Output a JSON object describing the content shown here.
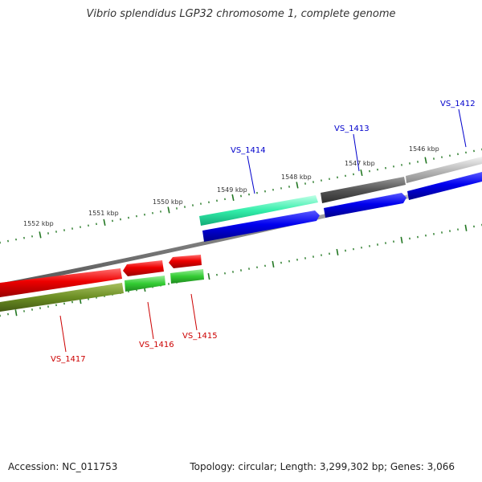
{
  "title": "Vibrio splendidus LGP32 chromosome 1, complete genome",
  "footer": {
    "accession": "Accession: NC_011753",
    "summary": "Topology: circular; Length: 3,299,302 bp; Genes: 3,066"
  },
  "ticks": [
    "1546 kbp",
    "1547 kbp",
    "1548 kbp",
    "1549 kbp",
    "1550 kbp",
    "1551 kbp",
    "1552 kbp"
  ],
  "genes": [
    {
      "label": "VS_1412",
      "color": "#0000cc"
    },
    {
      "label": "VS_1413",
      "color": "#0000cc"
    },
    {
      "label": "VS_1414",
      "color": "#0000cc"
    },
    {
      "label": "VS_1415",
      "color": "#cc0000"
    },
    {
      "label": "VS_1416",
      "color": "#cc0000"
    },
    {
      "label": "VS_1417",
      "color": "#cc0000"
    }
  ],
  "colors": {
    "forward_cds": "#0000ee",
    "reverse_cds": "#ee0000",
    "forward_feature": "#33eeaa",
    "reverse_feature_dark": "#6b8e23",
    "reverse_feature_light": "#33cc33",
    "backbone": "#888888",
    "tick": "#227722"
  }
}
